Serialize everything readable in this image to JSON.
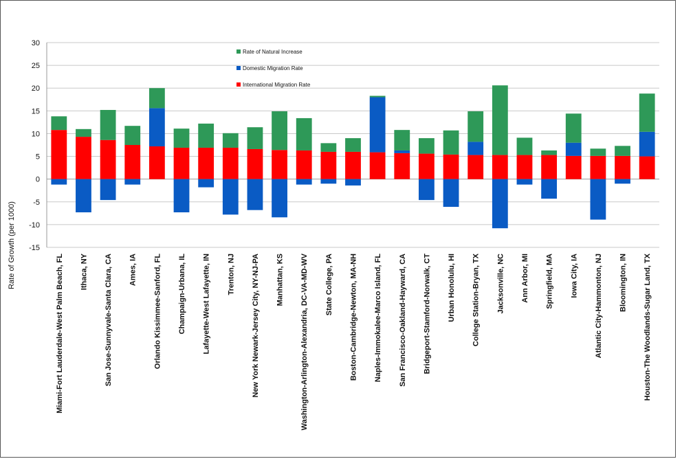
{
  "chart_data": {
    "type": "bar",
    "stacked": true,
    "ylabel": "Rate of Growth (per 1000)",
    "ylim": [
      -15,
      30
    ],
    "yticks": [
      30,
      25,
      20,
      15,
      10,
      5,
      0,
      -5,
      -10,
      -15
    ],
    "grid": true,
    "legend_position": "top-left",
    "categories": [
      "Miami-Fort Lauderdale-West Palm Beach, FL",
      "Ithaca, NY",
      "San Jose-Sunnyvale-Santa Clara, CA",
      "Ames, IA",
      "Orlando Kissimmee-Sanford, FL",
      "Champaign-Urbana, IL",
      "Lafayette-West Lafayette, IN",
      "Trenton, NJ",
      "New York Newark-Jersey City, NY-NJ-PA",
      "Manhattan, KS",
      "Washington-Arlington-Alexandria, DC-VA-MD-WV",
      "State College, PA",
      "Boston-Cambridge-Newton, MA-NH",
      "Naples-Immokalee-Marco Island, FL",
      "San Francisco-Oakland-Hayward, CA",
      "Bridgeport-Stamford-Norwalk, CT",
      "Urban Honolulu, HI",
      "College Station-Bryan, TX",
      "Jacksonville, NC",
      "Ann Arbor, MI",
      "Springfield, MA",
      "Iowa City, IA",
      "Atlantic City-Hammonton, NJ",
      "Bloomington, IN",
      "Houston-The Woodlands-Sugar Land, TX"
    ],
    "series": [
      {
        "name": "International Migration Rate",
        "color": "#ff0000",
        "values": [
          10.8,
          9.3,
          8.6,
          7.5,
          7.2,
          6.9,
          6.9,
          6.9,
          6.6,
          6.4,
          6.3,
          6.0,
          6.0,
          5.9,
          5.7,
          5.6,
          5.4,
          5.3,
          5.3,
          5.3,
          5.3,
          5.1,
          5.1,
          5.1,
          5.0
        ]
      },
      {
        "name": "Domestic Migration Rate",
        "color": "#0a5bc4",
        "values": [
          -1.2,
          -7.3,
          -4.6,
          -1.2,
          8.4,
          -7.3,
          -1.8,
          -7.8,
          -6.8,
          -8.4,
          -1.2,
          -1.0,
          -1.4,
          12.1,
          0.6,
          -4.6,
          -6.1,
          2.9,
          -10.8,
          -1.2,
          -4.3,
          2.9,
          -8.9,
          -1.0,
          5.4
        ]
      },
      {
        "name": "Rate of Natural Increase",
        "color": "#2e9958",
        "values": [
          3.0,
          1.7,
          6.6,
          4.2,
          4.4,
          4.2,
          5.3,
          3.2,
          4.8,
          8.5,
          7.1,
          1.9,
          3.0,
          0.3,
          4.5,
          3.4,
          5.3,
          6.7,
          15.3,
          3.8,
          1.0,
          6.4,
          1.6,
          2.2,
          8.4
        ]
      }
    ]
  }
}
